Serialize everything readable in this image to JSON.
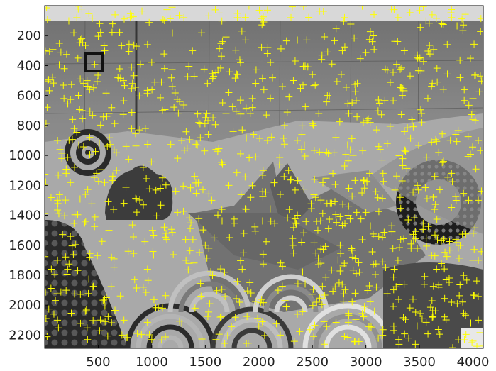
{
  "chart_data": {
    "type": "scatter",
    "description_free": true,
    "xlim": [
      0,
      4096
    ],
    "ylim": [
      2288,
      0
    ],
    "x_ticks": [
      "500",
      "1000",
      "1500",
      "2000",
      "2500",
      "3000",
      "3500",
      "4000"
    ],
    "y_ticks": [
      "200",
      "400",
      "600",
      "800",
      "1000",
      "1200",
      "1400",
      "1600",
      "1800",
      "2000",
      "2200"
    ],
    "x_tick_values": [
      500,
      1000,
      1500,
      2000,
      2500,
      3000,
      3500,
      4000
    ],
    "y_tick_values": [
      200,
      400,
      600,
      800,
      1000,
      1200,
      1400,
      1600,
      1800,
      2000,
      2200
    ],
    "marker": "+",
    "marker_color": "#ffff00",
    "background": "grayscale photograph of a painted mural on a tiled wall",
    "series": [
      {
        "values_note": "feature points",
        "points": [
          [
            180,
            620
          ],
          [
            310,
            350
          ],
          [
            420,
            560
          ],
          [
            560,
            300
          ],
          [
            700,
            180
          ],
          [
            820,
            520
          ],
          [
            960,
            260
          ],
          [
            1120,
            420
          ],
          [
            1260,
            640
          ],
          [
            1380,
            300
          ],
          [
            1520,
            520
          ],
          [
            1660,
            240
          ],
          [
            1800,
            460
          ],
          [
            1940,
            620
          ],
          [
            2080,
            320
          ],
          [
            2220,
            540
          ],
          [
            2360,
            230
          ],
          [
            2500,
            460
          ],
          [
            2640,
            600
          ],
          [
            2780,
            300
          ],
          [
            2920,
            520
          ],
          [
            3060,
            240
          ],
          [
            3200,
            430
          ],
          [
            3340,
            600
          ],
          [
            3480,
            330
          ],
          [
            3620,
            520
          ],
          [
            3760,
            260
          ],
          [
            3880,
            480
          ],
          [
            4000,
            620
          ],
          [
            260,
            760
          ],
          [
            420,
            880
          ],
          [
            600,
            720
          ],
          [
            760,
            940
          ],
          [
            940,
            820
          ],
          [
            1100,
            700
          ],
          [
            1280,
            900
          ],
          [
            1440,
            780
          ],
          [
            1600,
            960
          ],
          [
            1760,
            840
          ],
          [
            1920,
            720
          ],
          [
            2080,
            900
          ],
          [
            2240,
            800
          ],
          [
            2400,
            960
          ],
          [
            2560,
            720
          ],
          [
            2720,
            880
          ],
          [
            2880,
            1000
          ],
          [
            3040,
            780
          ],
          [
            3200,
            920
          ],
          [
            3360,
            840
          ],
          [
            3520,
            720
          ],
          [
            3680,
            980
          ],
          [
            3840,
            860
          ],
          [
            4000,
            760
          ],
          [
            200,
            1120
          ],
          [
            380,
            1260
          ],
          [
            560,
            1180
          ],
          [
            740,
            1320
          ],
          [
            920,
            1080
          ],
          [
            1080,
            1220
          ],
          [
            1240,
            1380
          ],
          [
            1400,
            1140
          ],
          [
            1560,
            1300
          ],
          [
            1720,
            1200
          ],
          [
            1880,
            1360
          ],
          [
            2040,
            1100
          ],
          [
            2200,
            1260
          ],
          [
            2360,
            1400
          ],
          [
            2520,
            1160
          ],
          [
            2680,
            1320
          ],
          [
            2840,
            1220
          ],
          [
            3000,
            1380
          ],
          [
            3160,
            1120
          ],
          [
            3320,
            1280
          ],
          [
            3480,
            1200
          ],
          [
            3640,
            1360
          ],
          [
            3800,
            1120
          ],
          [
            3960,
            1300
          ],
          [
            240,
            1540
          ],
          [
            420,
            1680
          ],
          [
            600,
            1500
          ],
          [
            780,
            1640
          ],
          [
            960,
            1760
          ],
          [
            1140,
            1560
          ],
          [
            1320,
            1700
          ],
          [
            1500,
            1600
          ],
          [
            1680,
            1780
          ],
          [
            1860,
            1520
          ],
          [
            2040,
            1660
          ],
          [
            2220,
            1740
          ],
          [
            2400,
            1580
          ],
          [
            2580,
            1720
          ],
          [
            2760,
            1600
          ],
          [
            2940,
            1780
          ],
          [
            3120,
            1540
          ],
          [
            3300,
            1700
          ],
          [
            3480,
            1620
          ],
          [
            3660,
            1760
          ],
          [
            3840,
            1560
          ],
          [
            4000,
            1700
          ],
          [
            200,
            1900
          ],
          [
            380,
            2040
          ],
          [
            560,
            1960
          ],
          [
            740,
            2100
          ],
          [
            920,
            1880
          ],
          [
            1100,
            2020
          ],
          [
            1280,
            2120
          ],
          [
            1460,
            1940
          ],
          [
            1640,
            2080
          ],
          [
            1820,
            1980
          ],
          [
            2000,
            2140
          ],
          [
            2180,
            1900
          ],
          [
            2360,
            2060
          ],
          [
            2540,
            1980
          ],
          [
            2720,
            2120
          ],
          [
            2900,
            1920
          ],
          [
            3080,
            2040
          ],
          [
            3260,
            2140
          ],
          [
            3440,
            1960
          ],
          [
            3620,
            2080
          ],
          [
            3800,
            1980
          ],
          [
            3980,
            2120
          ],
          [
            120,
            900
          ],
          [
            120,
            1300
          ],
          [
            120,
            1700
          ],
          [
            120,
            2100
          ],
          [
            4050,
            900
          ],
          [
            4050,
            1300
          ],
          [
            4050,
            1700
          ],
          [
            4050,
            2100
          ],
          [
            300,
            80
          ],
          [
            800,
            80
          ],
          [
            1300,
            80
          ],
          [
            1800,
            80
          ],
          [
            2300,
            80
          ],
          [
            2800,
            80
          ],
          [
            3300,
            80
          ],
          [
            3800,
            80
          ],
          [
            400,
            2230
          ],
          [
            1000,
            2230
          ],
          [
            1600,
            2230
          ],
          [
            2200,
            2200
          ],
          [
            2800,
            2210
          ],
          [
            3400,
            2220
          ],
          [
            4000,
            2240
          ]
        ]
      }
    ]
  }
}
